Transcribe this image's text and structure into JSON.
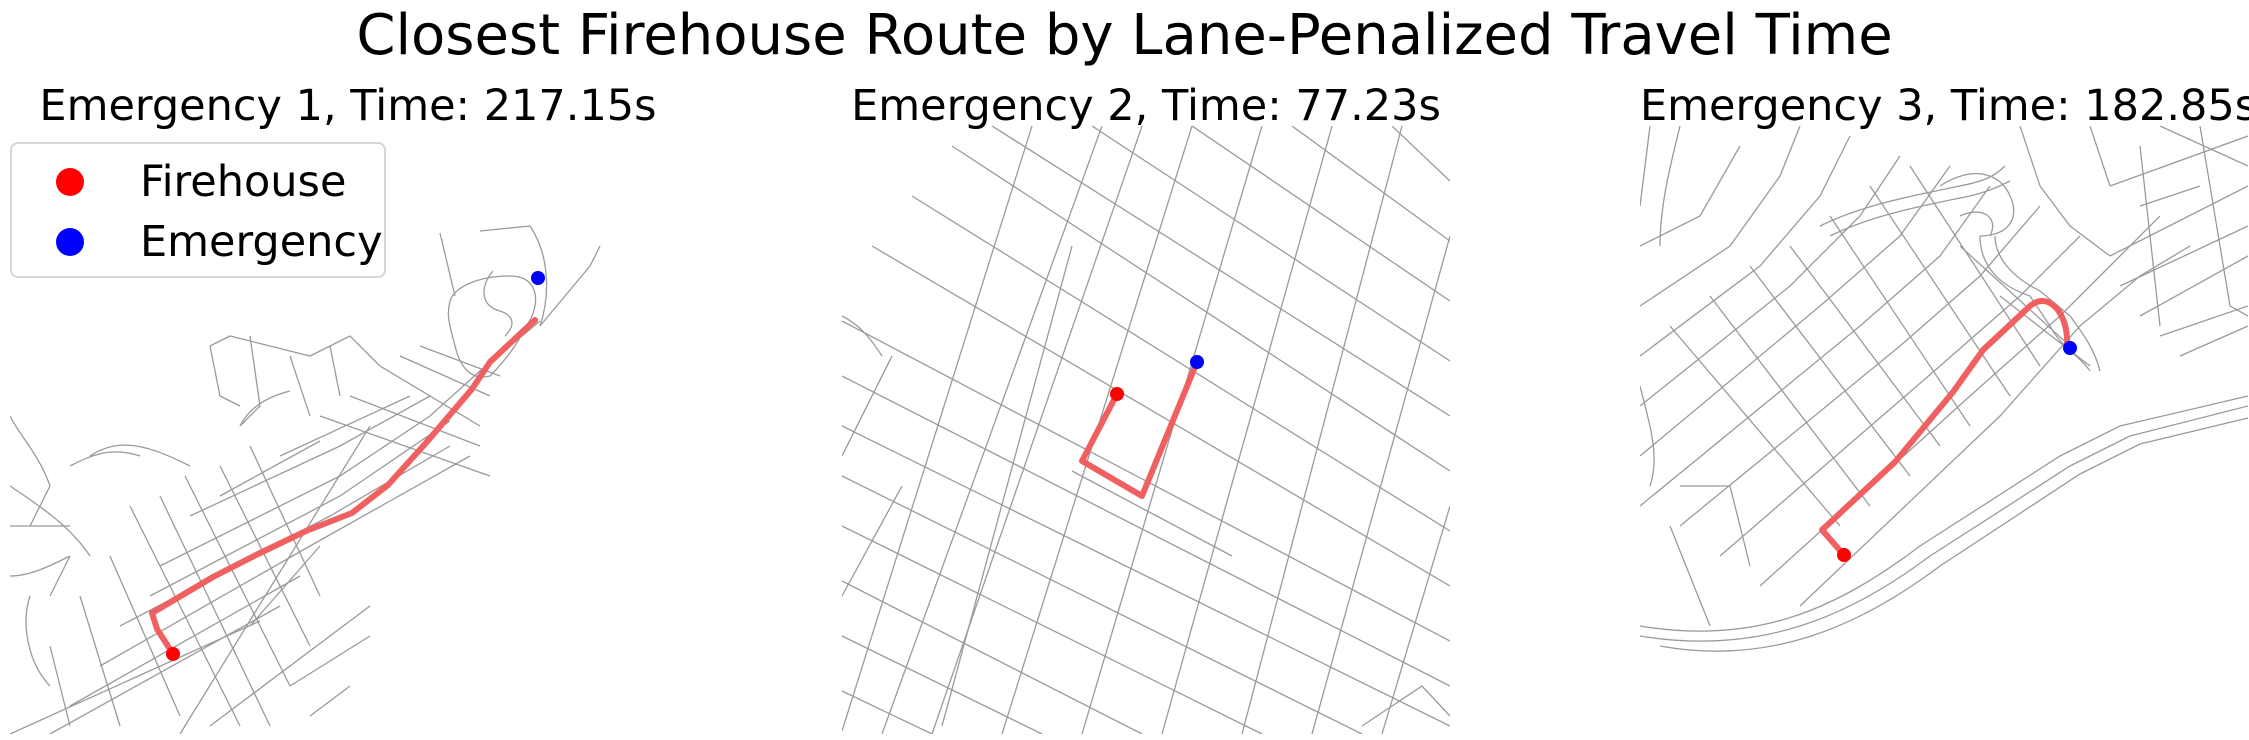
{
  "figure": {
    "title": "Closest Firehouse Route by Lane-Penalized Travel Time"
  },
  "legend": {
    "items": [
      {
        "label": "Firehouse",
        "color": "#ff0000"
      },
      {
        "label": "Emergency",
        "color": "#0000ff"
      }
    ]
  },
  "panels": [
    {
      "title": "Emergency 1, Time: 217.15s",
      "time_s": 217.15
    },
    {
      "title": "Emergency 2, Time: 77.23s",
      "time_s": 77.23
    },
    {
      "title": "Emergency 3, Time: 182.85s",
      "time_s": 182.85
    }
  ],
  "style": {
    "route_color": "#f06060",
    "street_color": "#999999",
    "firehouse_color": "#ff0000",
    "emergency_color": "#0000ff"
  }
}
